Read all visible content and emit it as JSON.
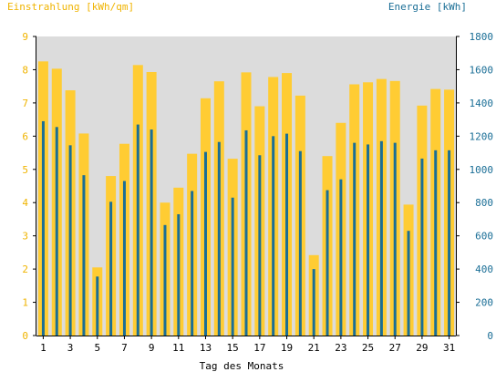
{
  "chart_data": {
    "type": "bar",
    "xlabel": "Tag des Monats",
    "ylabel_left": "Einstrahlung [kWh/qm]",
    "ylabel_right": "Energie [kWh]",
    "y_left_range": [
      0,
      9
    ],
    "y_right_range": [
      0,
      1800
    ],
    "y_left_ticks": [
      "0",
      "1",
      "2",
      "3",
      "4",
      "5",
      "6",
      "7",
      "8",
      "9"
    ],
    "y_right_ticks": [
      "0",
      "200",
      "400",
      "600",
      "800",
      "1000",
      "1200",
      "1400",
      "1600",
      "1800"
    ],
    "x_tick_labels": [
      "1",
      "3",
      "5",
      "7",
      "9",
      "11",
      "13",
      "15",
      "17",
      "19",
      "21",
      "23",
      "25",
      "27",
      "29",
      "31"
    ],
    "grid": false,
    "categories": [
      1,
      2,
      3,
      4,
      5,
      6,
      7,
      8,
      9,
      10,
      11,
      12,
      13,
      14,
      15,
      16,
      17,
      18,
      19,
      20,
      21,
      22,
      23,
      24,
      25,
      26,
      27,
      28,
      29,
      30,
      31
    ],
    "series": [
      {
        "name": "Einstrahlung [kWh/qm]",
        "axis": "left",
        "color": "#ffcc33",
        "values": [
          8.25,
          8.03,
          7.38,
          6.08,
          2.05,
          4.8,
          5.77,
          8.14,
          7.93,
          4.0,
          4.45,
          5.47,
          7.14,
          7.65,
          5.32,
          7.92,
          6.9,
          7.78,
          7.9,
          7.22,
          2.42,
          5.4,
          6.4,
          7.56,
          7.62,
          7.72,
          7.66,
          3.94,
          6.92,
          7.42,
          7.4
        ]
      },
      {
        "name": "Energie [kWh]",
        "axis": "right",
        "color": "#1a6e96",
        "values": [
          1290,
          1255,
          1145,
          965,
          355,
          805,
          930,
          1270,
          1240,
          665,
          730,
          870,
          1105,
          1165,
          830,
          1235,
          1085,
          1200,
          1215,
          1110,
          400,
          875,
          940,
          1160,
          1150,
          1170,
          1160,
          630,
          1065,
          1115,
          1115
        ]
      }
    ],
    "colors": {
      "plot_background": "#dcdcdc",
      "left_axis_text": "#f0b400",
      "right_axis_text": "#1a6e96",
      "axis_line": "#000000"
    }
  }
}
